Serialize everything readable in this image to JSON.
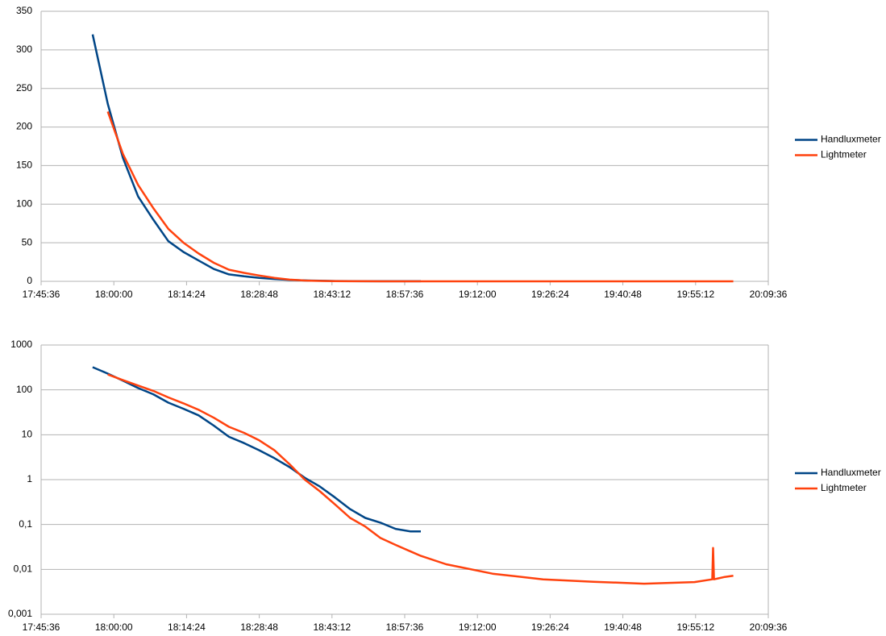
{
  "chart_data": [
    {
      "type": "line",
      "log": false,
      "grid": true,
      "legend": "right",
      "xlim": [
        "17:45:36",
        "20:09:36"
      ],
      "xticks": [
        "17:45:36",
        "18:00:00",
        "18:14:24",
        "18:28:48",
        "18:43:12",
        "18:57:36",
        "19:12:00",
        "19:26:24",
        "19:40:48",
        "19:55:12",
        "20:09:36"
      ],
      "ylim": [
        0,
        350
      ],
      "yticks": [
        0,
        50,
        100,
        150,
        200,
        250,
        300,
        350
      ],
      "x": [
        "17:55:48",
        "17:58:48",
        "18:01:48",
        "18:04:48",
        "18:07:48",
        "18:10:48",
        "18:13:48",
        "18:16:48",
        "18:19:48",
        "18:22:48",
        "18:25:48",
        "18:28:48",
        "18:31:48",
        "18:34:48",
        "18:37:48",
        "18:40:48",
        "18:43:48",
        "18:46:48",
        "18:49:48",
        "18:52:48",
        "18:55:48",
        "18:58:48",
        "19:00:48",
        "19:05:48",
        "19:15:00",
        "19:25:00",
        "19:35:00",
        "19:45:00",
        "19:55:00",
        "19:58:30",
        "19:58:40",
        "19:58:50",
        "20:01:00",
        "20:02:40"
      ],
      "series": [
        {
          "name": "Handluxmeter",
          "color": "#004586",
          "values": [
            320,
            230,
            160,
            110,
            80,
            52,
            38,
            27,
            16,
            9,
            6.5,
            4.5,
            3,
            1.9,
            1.1,
            0.7,
            0.4,
            0.22,
            0.14,
            0.11,
            0.08,
            0.07,
            0.07,
            null,
            null,
            null,
            null,
            null,
            null,
            null,
            null,
            null,
            null,
            null
          ]
        },
        {
          "name": "Lightmeter",
          "color": "#ff420e",
          "values": [
            null,
            220,
            165,
            125,
            95,
            68,
            50,
            36,
            24,
            15,
            11,
            7.5,
            4.5,
            2.2,
            1.0,
            0.55,
            0.28,
            0.14,
            0.09,
            0.05,
            0.035,
            0.025,
            0.02,
            0.013,
            0.008,
            0.006,
            0.0053,
            0.0048,
            0.0052,
            0.006,
            0.03,
            0.006,
            0.0068,
            0.0072
          ]
        }
      ]
    },
    {
      "type": "line",
      "log": true,
      "grid": true,
      "legend": "right",
      "xlim": [
        "17:45:36",
        "20:09:36"
      ],
      "xticks": [
        "17:45:36",
        "18:00:00",
        "18:14:24",
        "18:28:48",
        "18:43:12",
        "18:57:36",
        "19:12:00",
        "19:26:24",
        "19:40:48",
        "19:55:12",
        "20:09:36"
      ],
      "ylim": [
        0.001,
        1000
      ],
      "yticks": [
        {
          "value": 0.001,
          "label": "0,001"
        },
        {
          "value": 0.01,
          "label": "0,01"
        },
        {
          "value": 0.1,
          "label": "0,1"
        },
        1,
        10,
        100,
        1000
      ],
      "x": [
        "17:55:48",
        "17:58:48",
        "18:01:48",
        "18:04:48",
        "18:07:48",
        "18:10:48",
        "18:13:48",
        "18:16:48",
        "18:19:48",
        "18:22:48",
        "18:25:48",
        "18:28:48",
        "18:31:48",
        "18:34:48",
        "18:37:48",
        "18:40:48",
        "18:43:48",
        "18:46:48",
        "18:49:48",
        "18:52:48",
        "18:55:48",
        "18:58:48",
        "19:00:48",
        "19:05:48",
        "19:15:00",
        "19:25:00",
        "19:35:00",
        "19:45:00",
        "19:55:00",
        "19:58:30",
        "19:58:40",
        "19:58:50",
        "20:01:00",
        "20:02:40"
      ],
      "series": [
        {
          "name": "Handluxmeter",
          "color": "#004586",
          "values": [
            320,
            230,
            160,
            110,
            80,
            52,
            38,
            27,
            16,
            9,
            6.5,
            4.5,
            3,
            1.9,
            1.1,
            0.7,
            0.4,
            0.22,
            0.14,
            0.11,
            0.08,
            0.07,
            0.07,
            null,
            null,
            null,
            null,
            null,
            null,
            null,
            null,
            null,
            null,
            null
          ]
        },
        {
          "name": "Lightmeter",
          "color": "#ff420e",
          "values": [
            null,
            220,
            165,
            125,
            95,
            68,
            50,
            36,
            24,
            15,
            11,
            7.5,
            4.5,
            2.2,
            1.0,
            0.55,
            0.28,
            0.14,
            0.09,
            0.05,
            0.035,
            0.025,
            0.02,
            0.013,
            0.008,
            0.006,
            0.0053,
            0.0048,
            0.0052,
            0.006,
            0.03,
            0.006,
            0.0068,
            0.0072
          ]
        }
      ]
    }
  ]
}
